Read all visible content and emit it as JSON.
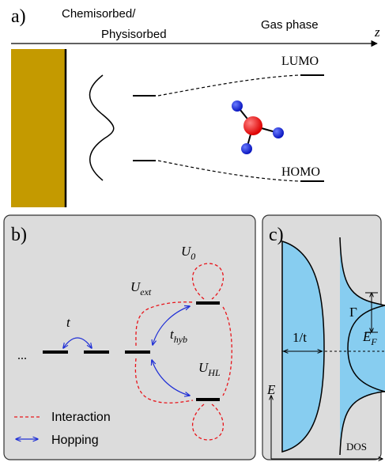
{
  "panel_a": {
    "label": "a)",
    "axis_label": "z",
    "chemisorbed_line1": "Chemisorbed/",
    "chemisorbed_line2": "Physisorbed",
    "gas_phase": "Gas phase",
    "lumo": "LUMO",
    "homo": "HOMO"
  },
  "panel_b": {
    "label": "b)",
    "ellipsis": "...",
    "t": "t",
    "t_hyb_main": "t",
    "t_hyb_sub": "hyb",
    "u0_main": "U",
    "u0_sub": "0",
    "uext_main": "U",
    "uext_sub": "ext",
    "uhl_main": "U",
    "uhl_sub": "HL",
    "legend": {
      "interaction": "Interaction",
      "hopping": "Hopping"
    }
  },
  "panel_c": {
    "label": "c)",
    "gamma": "Γ",
    "one_over_t": "1/t",
    "ef_main": "E",
    "ef_sub": "F",
    "y_axis": "E",
    "x_axis": "DOS"
  },
  "colors": {
    "metal": "#c49a00",
    "panel_bg": "#dcdcdc",
    "dos_fill": "#87cdf0",
    "interaction": "#e8151b",
    "hopping": "#1f2fd6",
    "oxygen": "#ee1111",
    "hydrogen": "#1122dd"
  }
}
